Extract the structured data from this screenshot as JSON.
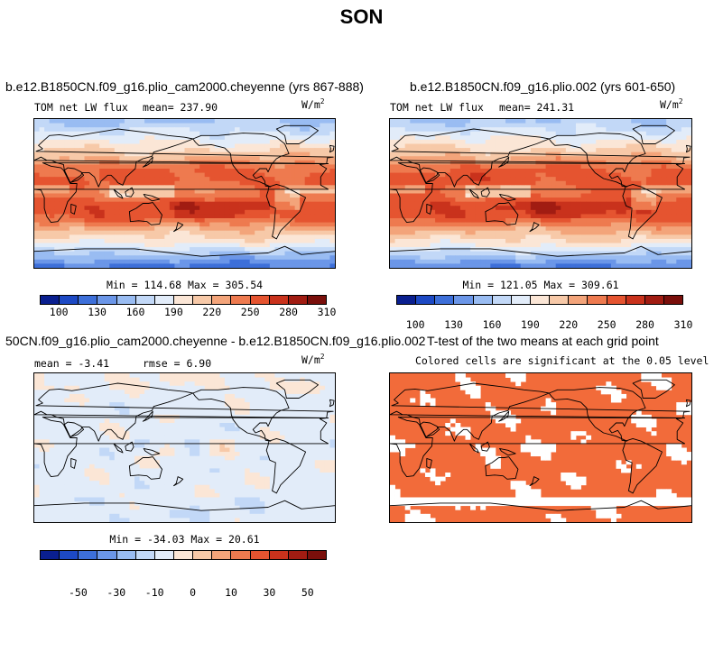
{
  "figure_title": "SON",
  "panels": [
    {
      "title": "b.e12.B1850CN.f09_g16.plio_cam2000.cheyenne (yrs 867-888)",
      "left_label": "TOM net LW flux",
      "mean_label": "mean= 237.90",
      "units_base": "W/m",
      "units_exp": "2",
      "minmax": "Min = 114.68 Max = 305.54"
    },
    {
      "title": "b.e12.B1850CN.f09_g16.plio.002 (yrs 601-650)",
      "left_label": "TOM net LW flux",
      "mean_label": "mean= 241.31",
      "units_base": "W/m",
      "units_exp": "2",
      "minmax": "Min = 121.05 Max = 309.61"
    },
    {
      "title": "50CN.f09_g16.plio_cam2000.cheyenne - b.e12.B1850CN.f09_g16.plio.002",
      "mean_label": "mean =  -3.41",
      "rmse_label": "rmse =   6.90",
      "units_base": "W/m",
      "units_exp": "2",
      "minmax": "Min = -34.03 Max =  20.61"
    },
    {
      "title": "T-test of the two means at each grid point",
      "subtitle": "Colored cells are significant at the 0.05 level"
    }
  ],
  "colorbars": {
    "absolute_ticks": [
      "100",
      "130",
      "160",
      "190",
      "220",
      "250",
      "280",
      "310"
    ],
    "diff_ticks": [
      "-50",
      "-30",
      "-10",
      "0",
      "10",
      "30",
      "50"
    ],
    "colors": [
      "#0a1f8f",
      "#1d49c4",
      "#3d6fd9",
      "#6b96e8",
      "#99bcf2",
      "#c2d8f7",
      "#e2ecf9",
      "#fbe6d6",
      "#f7c9a8",
      "#f3a47a",
      "#ee7a4f",
      "#e55430",
      "#c9321c",
      "#a11c12",
      "#7a0f0b"
    ]
  },
  "colors": {
    "ttest_fill": "#f26b3a",
    "land_line": "#000000"
  },
  "chart_data": [
    {
      "type": "heatmap",
      "title": "b.e12.B1850CN.f09_g16.plio_cam2000.cheyenne (yrs 867-888)",
      "variable": "TOM net LW flux",
      "units": "W/m2",
      "mean": 237.9,
      "min": 114.68,
      "max": 305.54,
      "zonal_profile": {
        "lat": [
          -90,
          -75,
          -60,
          -45,
          -30,
          -15,
          0,
          15,
          30,
          45,
          60,
          75,
          90
        ],
        "value": [
          125,
          160,
          200,
          225,
          265,
          275,
          250,
          265,
          260,
          225,
          200,
          180,
          160
        ]
      },
      "colorbar_ticks": [
        100,
        130,
        160,
        190,
        220,
        250,
        280,
        310
      ]
    },
    {
      "type": "heatmap",
      "title": "b.e12.B1850CN.f09_g16.plio.002 (yrs 601-650)",
      "variable": "TOM net LW flux",
      "units": "W/m2",
      "mean": 241.31,
      "min": 121.05,
      "max": 309.61,
      "zonal_profile": {
        "lat": [
          -90,
          -75,
          -60,
          -45,
          -30,
          -15,
          0,
          15,
          30,
          45,
          60,
          75,
          90
        ],
        "value": [
          130,
          165,
          205,
          230,
          268,
          280,
          255,
          270,
          263,
          228,
          203,
          183,
          163
        ]
      },
      "colorbar_ticks": [
        100,
        130,
        160,
        190,
        220,
        250,
        280,
        310
      ]
    },
    {
      "type": "heatmap",
      "title": "50CN.f09_g16.plio_cam2000.cheyenne - b.e12.B1850CN.f09_g16.plio.002",
      "units": "W/m2",
      "mean": -3.41,
      "rmse": 6.9,
      "min": -34.03,
      "max": 20.61,
      "colorbar_ticks": [
        -50,
        -30,
        -10,
        0,
        10,
        30,
        50
      ]
    },
    {
      "type": "heatmap",
      "title": "T-test of the two means at each grid point",
      "subtitle": "Colored cells are significant at the 0.05 level",
      "significance_level": 0.05
    }
  ]
}
